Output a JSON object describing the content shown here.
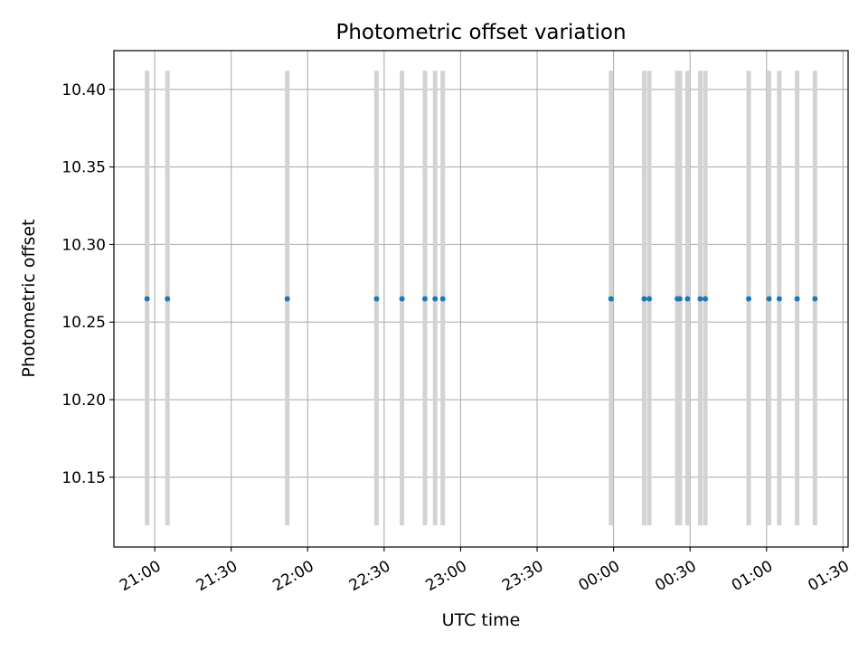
{
  "chart_data": {
    "type": "scatter",
    "title": "Photometric offset variation",
    "xlabel": "UTC time",
    "ylabel": "Photometric offset",
    "x_ticks": [
      "21:00",
      "21:30",
      "22:00",
      "22:30",
      "23:00",
      "23:30",
      "00:00",
      "00:30",
      "01:00",
      "01:30"
    ],
    "y_ticks": [
      "10.15",
      "10.20",
      "10.25",
      "10.30",
      "10.35",
      "10.40"
    ],
    "xlim": [
      "20:44",
      "01:32"
    ],
    "ylim": [
      10.105,
      10.425
    ],
    "grid": true,
    "error_bar": {
      "lower": 10.119,
      "upper": 10.412
    },
    "colors": {
      "points": "#1f77b4",
      "error_bars": "#d3d3d3",
      "grid": "#b0b0b0"
    },
    "points": [
      {
        "x": "20:57",
        "y": 10.265
      },
      {
        "x": "21:05",
        "y": 10.265
      },
      {
        "x": "21:52",
        "y": 10.265
      },
      {
        "x": "22:27",
        "y": 10.265
      },
      {
        "x": "22:37",
        "y": 10.265
      },
      {
        "x": "22:46",
        "y": 10.265
      },
      {
        "x": "22:50",
        "y": 10.265
      },
      {
        "x": "22:53",
        "y": 10.265
      },
      {
        "x": "23:59",
        "y": 10.265
      },
      {
        "x": "00:12",
        "y": 10.265
      },
      {
        "x": "00:14",
        "y": 10.265
      },
      {
        "x": "00:25",
        "y": 10.265
      },
      {
        "x": "00:26",
        "y": 10.265
      },
      {
        "x": "00:29",
        "y": 10.265
      },
      {
        "x": "00:34",
        "y": 10.265
      },
      {
        "x": "00:36",
        "y": 10.265
      },
      {
        "x": "00:53",
        "y": 10.265
      },
      {
        "x": "01:01",
        "y": 10.265
      },
      {
        "x": "01:05",
        "y": 10.265
      },
      {
        "x": "01:12",
        "y": 10.265
      },
      {
        "x": "01:19",
        "y": 10.265
      }
    ]
  }
}
